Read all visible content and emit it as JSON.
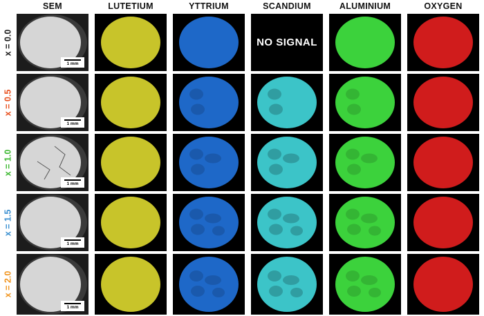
{
  "columns": [
    "SEM",
    "LUTETIUM",
    "YTTRIUM",
    "SCANDIUM",
    "ALUMINIUM",
    "OXYGEN"
  ],
  "rows": [
    {
      "label": "x = 0.0",
      "color": "#1a1a1a"
    },
    {
      "label": "x = 0.5",
      "color": "#e8501e"
    },
    {
      "label": "x = 1.0",
      "color": "#3cb830"
    },
    {
      "label": "x = 1.5",
      "color": "#3a8fd0"
    },
    {
      "label": "x = 2.0",
      "color": "#f0941e"
    }
  ],
  "element_colors": {
    "SEM": "#d6d6d6",
    "LUTETIUM": "#c8c42a",
    "YTTRIUM": "#1e68c8",
    "SCANDIUM": "#3cc4c8",
    "ALUMINIUM": "#3cd23c",
    "OXYGEN": "#d01c1c"
  },
  "no_signal_text": "NO SIGNAL",
  "scale_bar_label": "1 mm"
}
